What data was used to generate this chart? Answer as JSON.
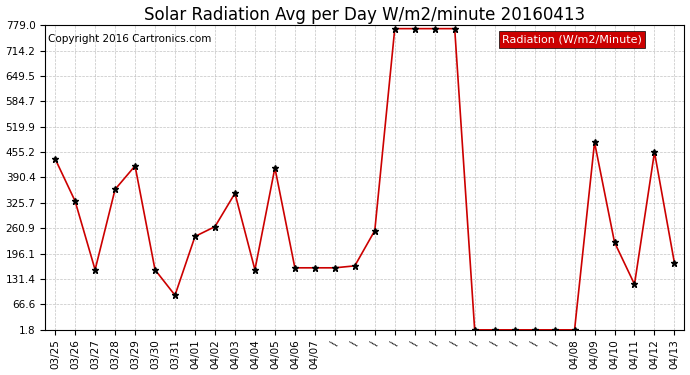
{
  "title": "Solar Radiation Avg per Day W/m2/minute 20160413",
  "copyright": "Copyright 2016 Cartronics.com",
  "legend_label": "Radiation (W/m2/Minute)",
  "legend_bg": "#cc0000",
  "legend_text_color": "#ffffff",
  "line_color": "#cc0000",
  "marker_color": "#000000",
  "bg_color": "#ffffff",
  "grid_color": "#aaaaaa",
  "yticks": [
    1.8,
    66.6,
    131.4,
    196.1,
    260.9,
    325.7,
    390.4,
    455.2,
    519.9,
    584.7,
    649.5,
    714.2,
    779.0
  ],
  "xlabels": [
    "03/25",
    "03/26",
    "03/27",
    "03/28",
    "03/29",
    "03/30",
    "03/31",
    "04/01",
    "04/02",
    "04/03",
    "04/04",
    "04/05",
    "04/06",
    "04/07",
    "",
    "",
    "",
    "",
    "",
    "",
    "",
    "",
    "",
    "",
    "",
    "",
    "04/08",
    "04/09",
    "04/10",
    "04/11",
    "04/12",
    "04/13"
  ],
  "values": [
    438.0,
    330.0,
    155.0,
    360.0,
    420.0,
    155.0,
    90.0,
    240.0,
    265.0,
    350.0,
    155.0,
    415.0,
    160.0,
    160.0,
    160.0,
    165.0,
    255.0,
    770.0,
    770.0,
    770.0,
    770.0,
    1.8,
    1.8,
    1.8,
    1.8,
    1.8,
    1.8,
    480.0,
    225.0,
    118.0,
    455.0,
    172.0
  ],
  "ylim_min": 1.8,
  "ylim_max": 779.0,
  "title_fontsize": 12,
  "copyright_fontsize": 7.5,
  "tick_fontsize": 7.5,
  "legend_fontsize": 8
}
